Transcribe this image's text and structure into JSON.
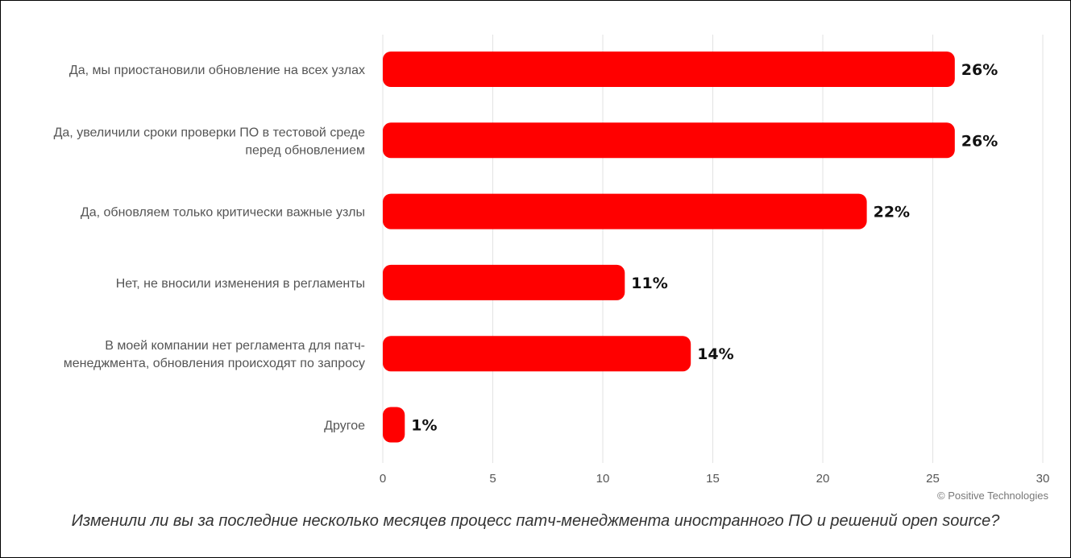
{
  "chart_data": {
    "type": "bar",
    "orientation": "horizontal",
    "categories": [
      [
        "Да, мы приостановили обновление на всех узлах"
      ],
      [
        "Да, увеличили сроки проверки ПО в тестовой среде",
        "перед обновлением"
      ],
      [
        "Да, обновляем только критически важные узлы"
      ],
      [
        "Нет, не вносили изменения в регламенты"
      ],
      [
        "В моей компании нет регламента для патч-",
        "менеджмента, обновления происходят по запросу"
      ],
      [
        "Другое"
      ]
    ],
    "values": [
      26,
      26,
      22,
      11,
      14,
      1
    ],
    "value_labels": [
      "26%",
      "26%",
      "22%",
      "11%",
      "14%",
      "1%"
    ],
    "xlim": [
      0,
      30
    ],
    "xticks": [
      0,
      5,
      10,
      15,
      20,
      25,
      30
    ],
    "grid": "vertical",
    "legend": "none",
    "bar_color": "#ff0000",
    "title": "Изменили ли вы за последние несколько месяцев процесс патч-менеджмента иностранного ПО и решений open source?"
  },
  "credit": "© Positive Technologies"
}
